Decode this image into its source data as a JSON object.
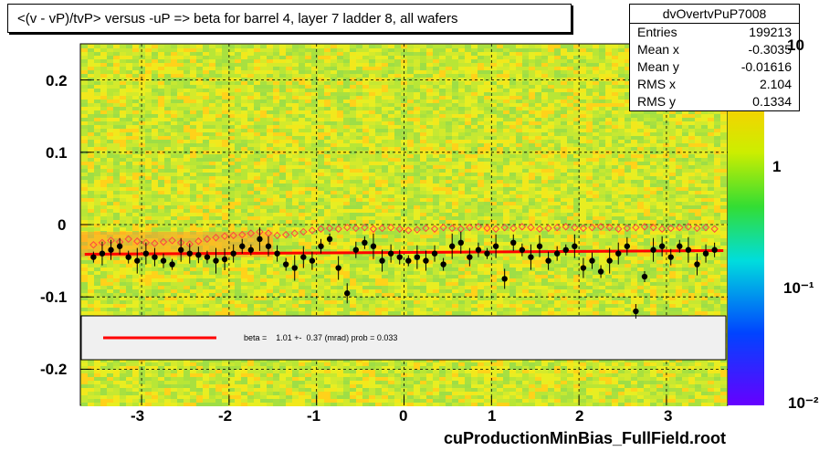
{
  "title": "<(v - vP)/tvP> versus  -uP => beta for barrel 4, layer 7 ladder 8, all wafers",
  "stats": {
    "name": "dvOvertvPuP7008",
    "rows": [
      {
        "label": "Entries",
        "value": "199213"
      },
      {
        "label": "Mean x",
        "value": "-0.3035"
      },
      {
        "label": "Mean y",
        "value": "-0.01616"
      },
      {
        "label": "RMS x",
        "value": "2.104"
      },
      {
        "label": "RMS y",
        "value": "0.1334"
      }
    ]
  },
  "footer": "cuProductionMinBias_FullField.root",
  "legend": {
    "text": "beta =    1.01 +-  0.37 (mrad) prob = 0.033"
  },
  "colors": {
    "fit": "#ff0000",
    "black_points": "#000000",
    "red_points": "#ff4444",
    "legend_bg": "#f0f0f0"
  },
  "chart_data": {
    "type": "scatter",
    "xlim": [
      -3.7,
      3.7
    ],
    "ylim": [
      -0.25,
      0.25
    ],
    "x_ticks": [
      "-3",
      "-2",
      "-1",
      "0",
      "1",
      "2",
      "3"
    ],
    "y_ticks": [
      "0.2",
      "0.1",
      "0",
      "-0.1",
      "-0.2"
    ],
    "z_ticks": [
      "10",
      "1",
      "10⁻¹",
      "10⁻²"
    ],
    "z_scale": "log",
    "grid": true,
    "fit_line": {
      "x": [
        -3.65,
        3.65
      ],
      "y": [
        -0.041,
        -0.036
      ]
    },
    "series": [
      {
        "marker": "filled-circle",
        "color": "black",
        "x": [
          -3.55,
          -3.45,
          -3.35,
          -3.25,
          -3.15,
          -3.05,
          -2.95,
          -2.85,
          -2.75,
          -2.65,
          -2.55,
          -2.45,
          -2.35,
          -2.25,
          -2.15,
          -2.05,
          -1.95,
          -1.85,
          -1.75,
          -1.65,
          -1.55,
          -1.45,
          -1.35,
          -1.25,
          -1.15,
          -1.05,
          -0.95,
          -0.85,
          -0.75,
          -0.65,
          -0.55,
          -0.45,
          -0.35,
          -0.25,
          -0.15,
          -0.05,
          0.05,
          0.15,
          0.25,
          0.35,
          0.45,
          0.55,
          0.65,
          0.75,
          0.85,
          0.95,
          1.05,
          1.15,
          1.25,
          1.35,
          1.45,
          1.55,
          1.65,
          1.75,
          1.85,
          1.95,
          2.05,
          2.15,
          2.25,
          2.35,
          2.45,
          2.55,
          2.65,
          2.75,
          2.85,
          2.95,
          3.05,
          3.15,
          3.25,
          3.35,
          3.45,
          3.55
        ],
        "y": [
          -0.045,
          -0.04,
          -0.035,
          -0.03,
          -0.045,
          -0.05,
          -0.04,
          -0.045,
          -0.05,
          -0.055,
          -0.035,
          -0.04,
          -0.042,
          -0.045,
          -0.05,
          -0.048,
          -0.04,
          -0.03,
          -0.035,
          -0.02,
          -0.03,
          -0.04,
          -0.055,
          -0.06,
          -0.045,
          -0.05,
          -0.03,
          -0.02,
          -0.06,
          -0.095,
          -0.035,
          -0.025,
          -0.03,
          -0.05,
          -0.04,
          -0.045,
          -0.05,
          -0.045,
          -0.05,
          -0.04,
          -0.055,
          -0.03,
          -0.025,
          -0.045,
          -0.035,
          -0.04,
          -0.03,
          -0.075,
          -0.025,
          -0.035,
          -0.045,
          -0.03,
          -0.05,
          -0.04,
          -0.035,
          -0.03,
          -0.06,
          -0.05,
          -0.065,
          -0.05,
          -0.04,
          -0.03,
          -0.12,
          -0.072,
          -0.035,
          -0.03,
          -0.045,
          -0.03,
          -0.035,
          -0.055,
          -0.04,
          -0.035
        ]
      },
      {
        "marker": "open-diamond",
        "color": "red",
        "x": [
          -3.55,
          -3.45,
          -3.35,
          -3.25,
          -3.15,
          -3.05,
          -2.95,
          -2.85,
          -2.75,
          -2.65,
          -2.55,
          -2.45,
          -2.35,
          -2.25,
          -2.15,
          -2.05,
          -1.95,
          -1.85,
          -1.75,
          -1.65,
          -1.55,
          -1.45,
          -1.35,
          -1.25,
          -1.15,
          -1.05,
          -0.95,
          -0.85,
          -0.75,
          -0.65,
          -0.55,
          -0.45,
          -0.35,
          -0.25,
          -0.15,
          -0.05,
          0.05,
          0.15,
          0.25,
          0.35,
          0.45,
          0.55,
          0.65,
          0.75,
          0.85,
          0.95,
          1.05,
          1.15,
          1.25,
          1.35,
          1.45,
          1.55,
          1.65,
          1.75,
          1.85,
          1.95,
          2.05,
          2.15,
          2.25,
          2.35,
          2.45,
          2.55,
          2.65,
          2.75,
          2.85,
          2.95,
          3.05,
          3.15,
          3.25,
          3.35,
          3.45,
          3.55
        ],
        "y": [
          -0.028,
          -0.025,
          -0.022,
          -0.024,
          -0.02,
          -0.023,
          -0.025,
          -0.026,
          -0.024,
          -0.022,
          -0.025,
          -0.027,
          -0.023,
          -0.02,
          -0.018,
          -0.016,
          -0.015,
          -0.014,
          -0.012,
          -0.01,
          -0.012,
          -0.015,
          -0.014,
          -0.012,
          -0.01,
          -0.008,
          -0.006,
          -0.005,
          -0.006,
          -0.004,
          -0.005,
          -0.004,
          -0.006,
          -0.005,
          -0.004,
          -0.006,
          -0.008,
          -0.007,
          -0.005,
          -0.006,
          -0.004,
          -0.005,
          -0.006,
          -0.004,
          -0.003,
          -0.005,
          -0.006,
          -0.004,
          -0.005,
          -0.003,
          -0.004,
          -0.006,
          -0.005,
          -0.004,
          -0.003,
          -0.004,
          -0.005,
          -0.004,
          -0.003,
          -0.004,
          -0.006,
          -0.005,
          -0.004,
          -0.003,
          -0.004,
          -0.006,
          -0.005,
          -0.004,
          -0.003,
          -0.005,
          -0.004,
          -0.006
        ]
      }
    ]
  }
}
